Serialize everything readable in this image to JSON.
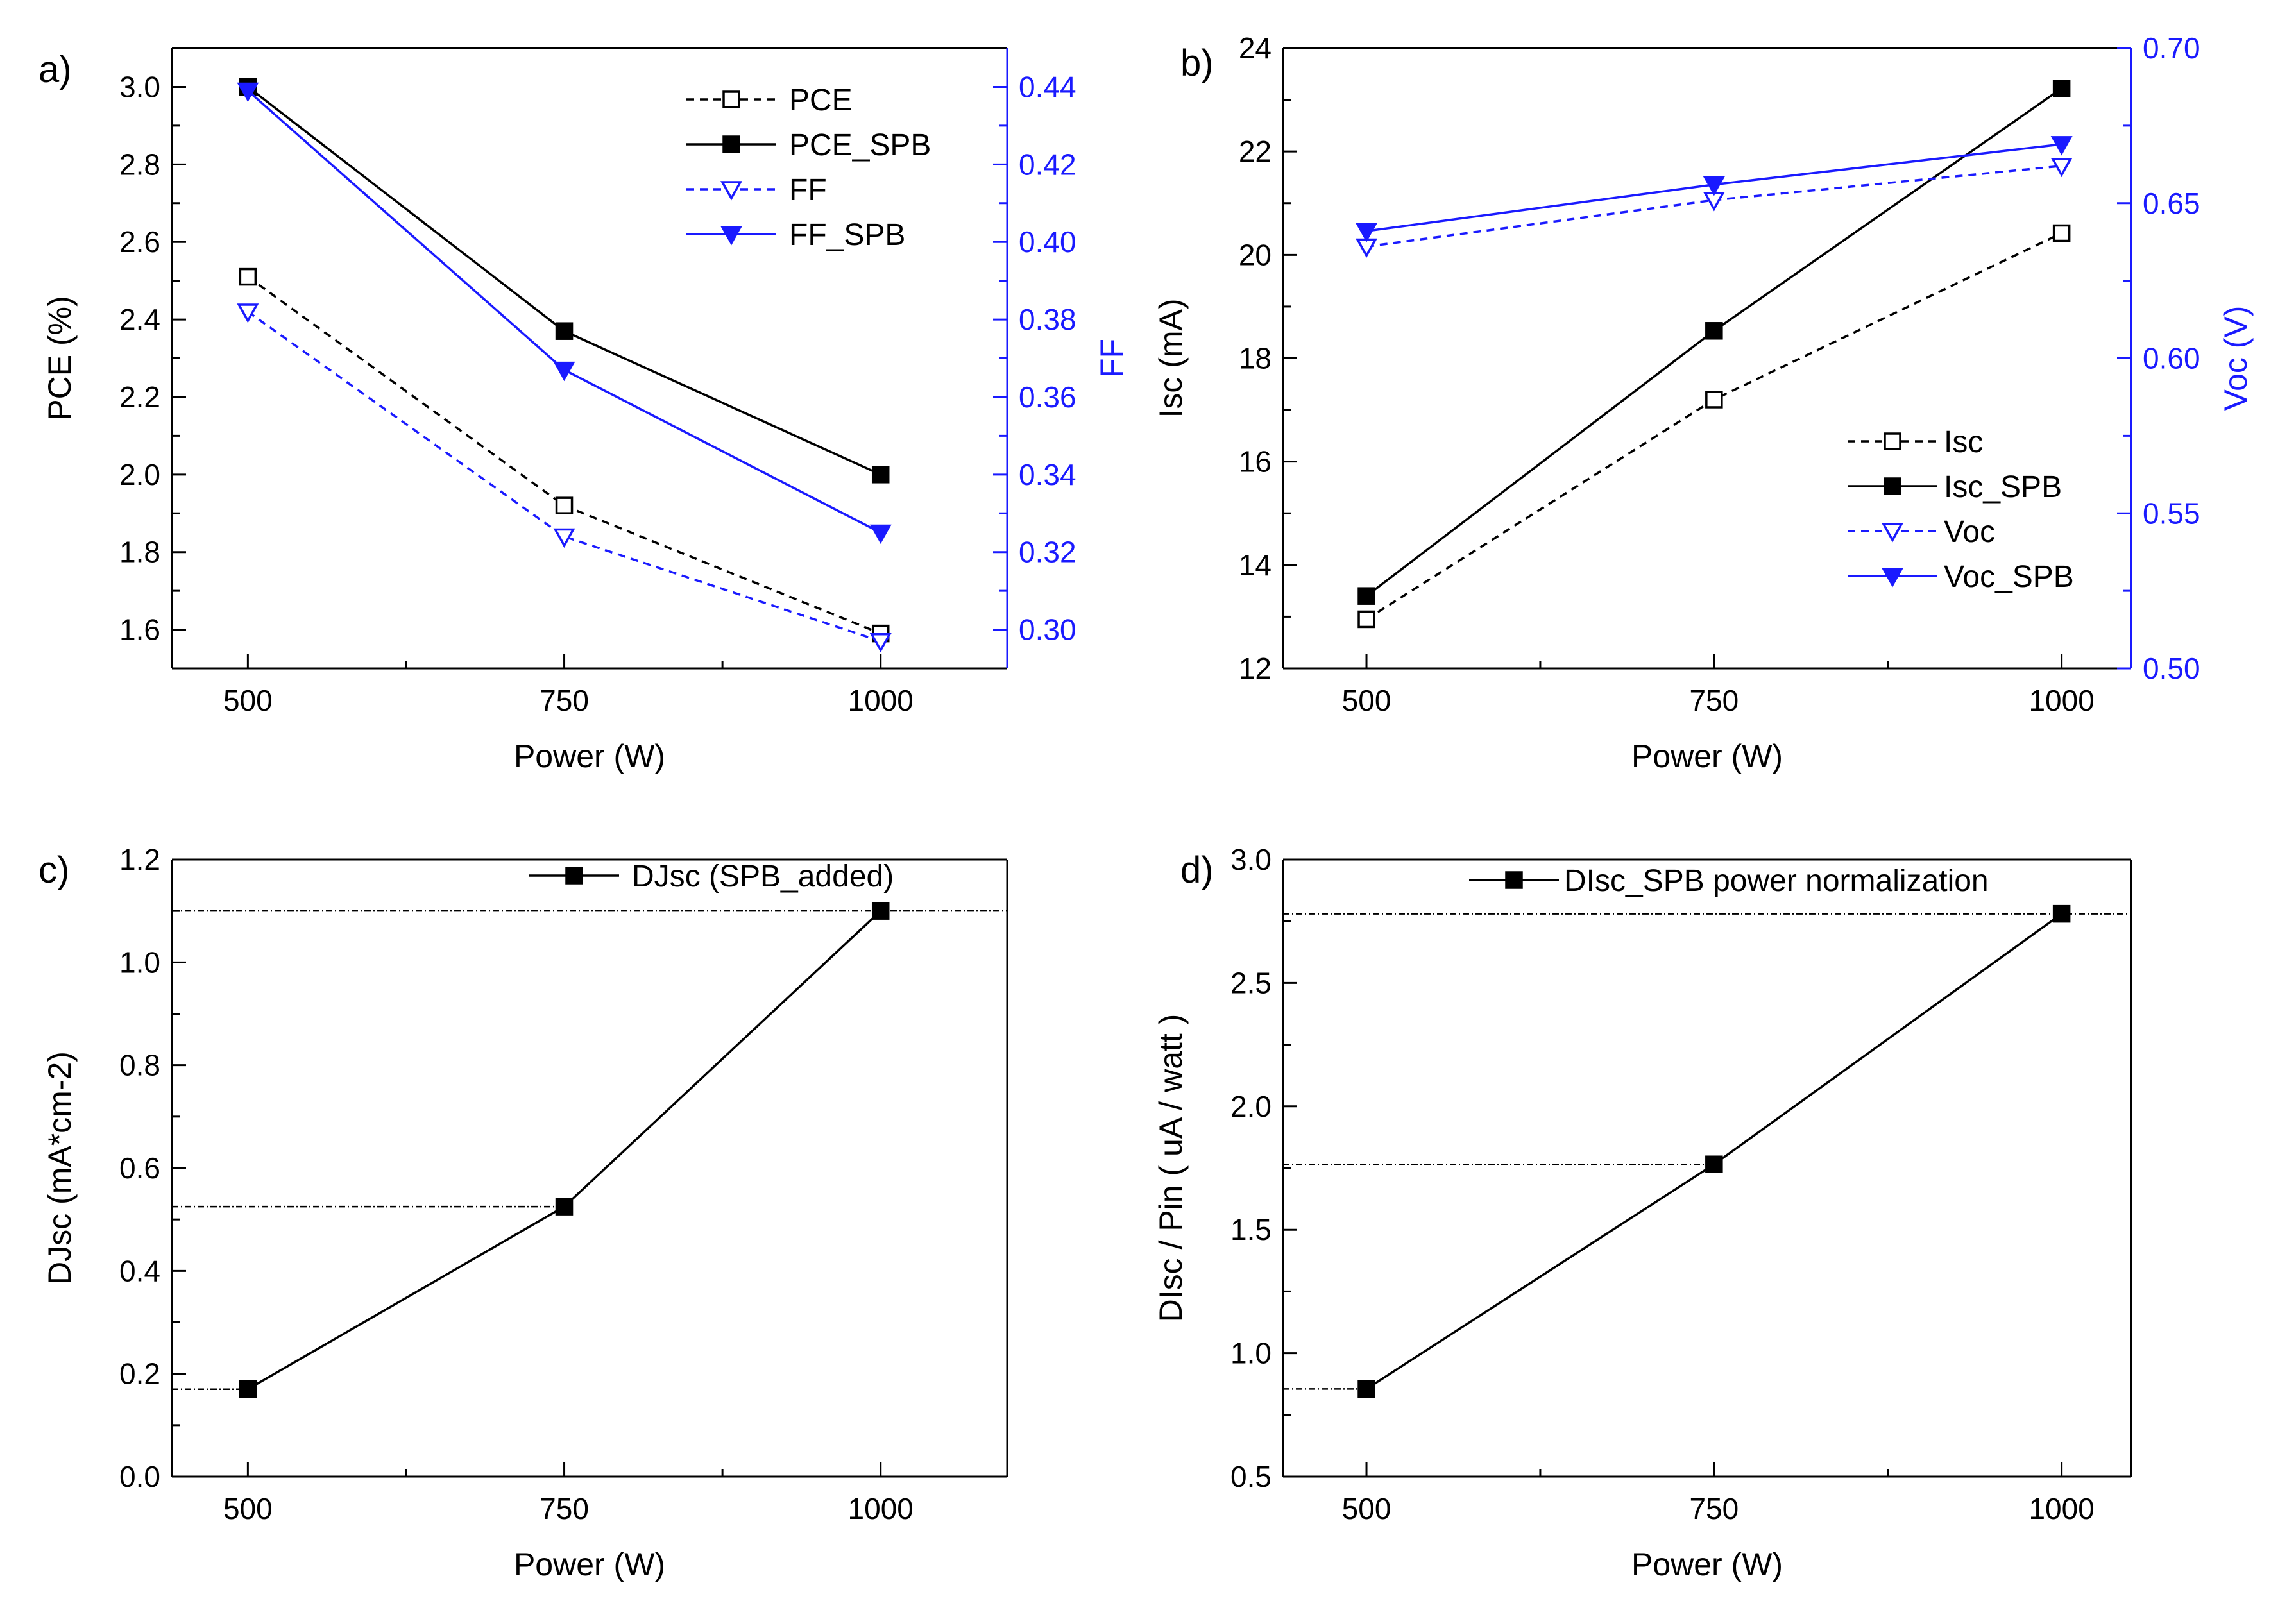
{
  "chart_data": [
    {
      "panel_label": "a)",
      "type": "line",
      "x": [
        500,
        750,
        1000
      ],
      "xlabel": "Power (W)",
      "xlim": [
        440,
        1100
      ],
      "x_ticks": [
        "500",
        "750",
        "1000"
      ],
      "ylabel": "PCE (%)",
      "ylim": [
        1.5,
        3.1
      ],
      "y_ticks": [
        "1.6",
        "1.8",
        "2.0",
        "2.2",
        "2.4",
        "2.6",
        "2.8",
        "3.0"
      ],
      "y2label": "FF",
      "y2lim": [
        0.29,
        0.45
      ],
      "y2_ticks": [
        "0.30",
        "0.32",
        "0.34",
        "0.36",
        "0.38",
        "0.40",
        "0.42",
        "0.44"
      ],
      "series": [
        {
          "name": "PCE",
          "axis": "left",
          "values": [
            2.51,
            1.92,
            1.59
          ],
          "color": "#000000",
          "dashed": true,
          "marker": "square-open"
        },
        {
          "name": "PCE_SPB",
          "axis": "left",
          "values": [
            3.0,
            2.37,
            2.0
          ],
          "color": "#000000",
          "dashed": false,
          "marker": "square-filled"
        },
        {
          "name": "FF",
          "axis": "right",
          "values": [
            0.382,
            0.324,
            0.297
          ],
          "color": "#1a1aff",
          "dashed": true,
          "marker": "tri-open"
        },
        {
          "name": "FF_SPB",
          "axis": "right",
          "values": [
            0.439,
            0.367,
            0.325
          ],
          "color": "#1a1aff",
          "dashed": false,
          "marker": "tri-filled"
        }
      ],
      "legend_position": "top-right"
    },
    {
      "panel_label": "b)",
      "type": "line",
      "x": [
        500,
        750,
        1000
      ],
      "xlabel": "Power (W)",
      "xlim": [
        440,
        1050
      ],
      "x_ticks": [
        "500",
        "750",
        "1000"
      ],
      "ylabel": "Isc (mA)",
      "ylim": [
        12,
        24
      ],
      "y_ticks": [
        "12",
        "14",
        "16",
        "18",
        "20",
        "22",
        "24"
      ],
      "y2label": "Voc (V)",
      "y2lim": [
        0.5,
        0.7
      ],
      "y2_ticks": [
        "0.50",
        "0.55",
        "0.60",
        "0.65",
        "0.70"
      ],
      "series": [
        {
          "name": "Isc",
          "axis": "left",
          "values": [
            12.95,
            17.2,
            20.42
          ],
          "color": "#000000",
          "dashed": true,
          "marker": "square-open"
        },
        {
          "name": "Isc_SPB",
          "axis": "left",
          "values": [
            13.4,
            18.53,
            23.22
          ],
          "color": "#000000",
          "dashed": false,
          "marker": "square-filled"
        },
        {
          "name": "Voc",
          "axis": "right",
          "values": [
            0.636,
            0.651,
            0.662
          ],
          "color": "#1a1aff",
          "dashed": true,
          "marker": "tri-open"
        },
        {
          "name": "Voc_SPB",
          "axis": "right",
          "values": [
            0.641,
            0.656,
            0.669
          ],
          "color": "#1a1aff",
          "dashed": false,
          "marker": "tri-filled"
        }
      ],
      "legend_position": "middle-right"
    },
    {
      "panel_label": "c)",
      "type": "line",
      "x": [
        500,
        750,
        1000
      ],
      "xlabel": "Power (W)",
      "xlim": [
        440,
        1100
      ],
      "x_ticks": [
        "500",
        "750",
        "1000"
      ],
      "ylabel": "DJsc (mA*cm-2)",
      "ylim": [
        0,
        1.2
      ],
      "y_ticks": [
        "0.0",
        "0.2",
        "0.4",
        "0.6",
        "0.8",
        "1.0",
        "1.2"
      ],
      "series": [
        {
          "name": "DJsc (SPB_added)",
          "axis": "left",
          "values": [
            0.17,
            0.525,
            1.1
          ],
          "color": "#000000",
          "dashed": false,
          "marker": "square-filled"
        }
      ],
      "reference_lines": [
        0.17,
        0.525,
        1.1
      ],
      "legend_position": "top-right"
    },
    {
      "panel_label": "d)",
      "type": "line",
      "x": [
        500,
        750,
        1000
      ],
      "xlabel": "Power (W)",
      "xlim": [
        440,
        1050
      ],
      "x_ticks": [
        "500",
        "750",
        "1000"
      ],
      "ylabel": "DIsc / Pin ( uA / watt )",
      "ylim": [
        0.5,
        3.0
      ],
      "y_ticks": [
        "0.5",
        "1.0",
        "1.5",
        "2.0",
        "2.5",
        "3.0"
      ],
      "series": [
        {
          "name": "DIsc_SPB power normalization",
          "axis": "left",
          "values": [
            0.855,
            1.765,
            2.78
          ],
          "color": "#000000",
          "dashed": false,
          "marker": "square-filled"
        }
      ],
      "reference_lines": [
        0.855,
        1.765,
        2.78
      ],
      "legend_position": "top-right"
    }
  ]
}
